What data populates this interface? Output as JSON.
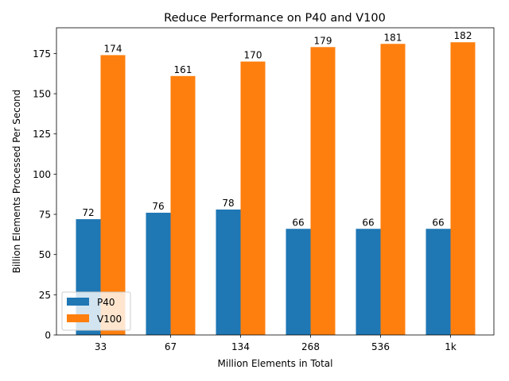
{
  "chart_data": {
    "type": "bar",
    "title": "Reduce Performance on P40 and V100",
    "xlabel": "Million Elements in Total",
    "ylabel": "Billion Elements Processed Per Second",
    "categories": [
      "33",
      "67",
      "134",
      "268",
      "536",
      "1k"
    ],
    "series": [
      {
        "name": "P40",
        "color": "#1f77b4",
        "values": [
          72,
          76,
          78,
          66,
          66,
          66
        ]
      },
      {
        "name": "V100",
        "color": "#ff7f0e",
        "values": [
          174,
          161,
          170,
          179,
          181,
          182
        ]
      }
    ],
    "ylim": [
      0,
      191
    ],
    "yticks": [
      0,
      25,
      50,
      75,
      100,
      125,
      150,
      175
    ],
    "grid": false,
    "legend_position": "lower-left"
  }
}
